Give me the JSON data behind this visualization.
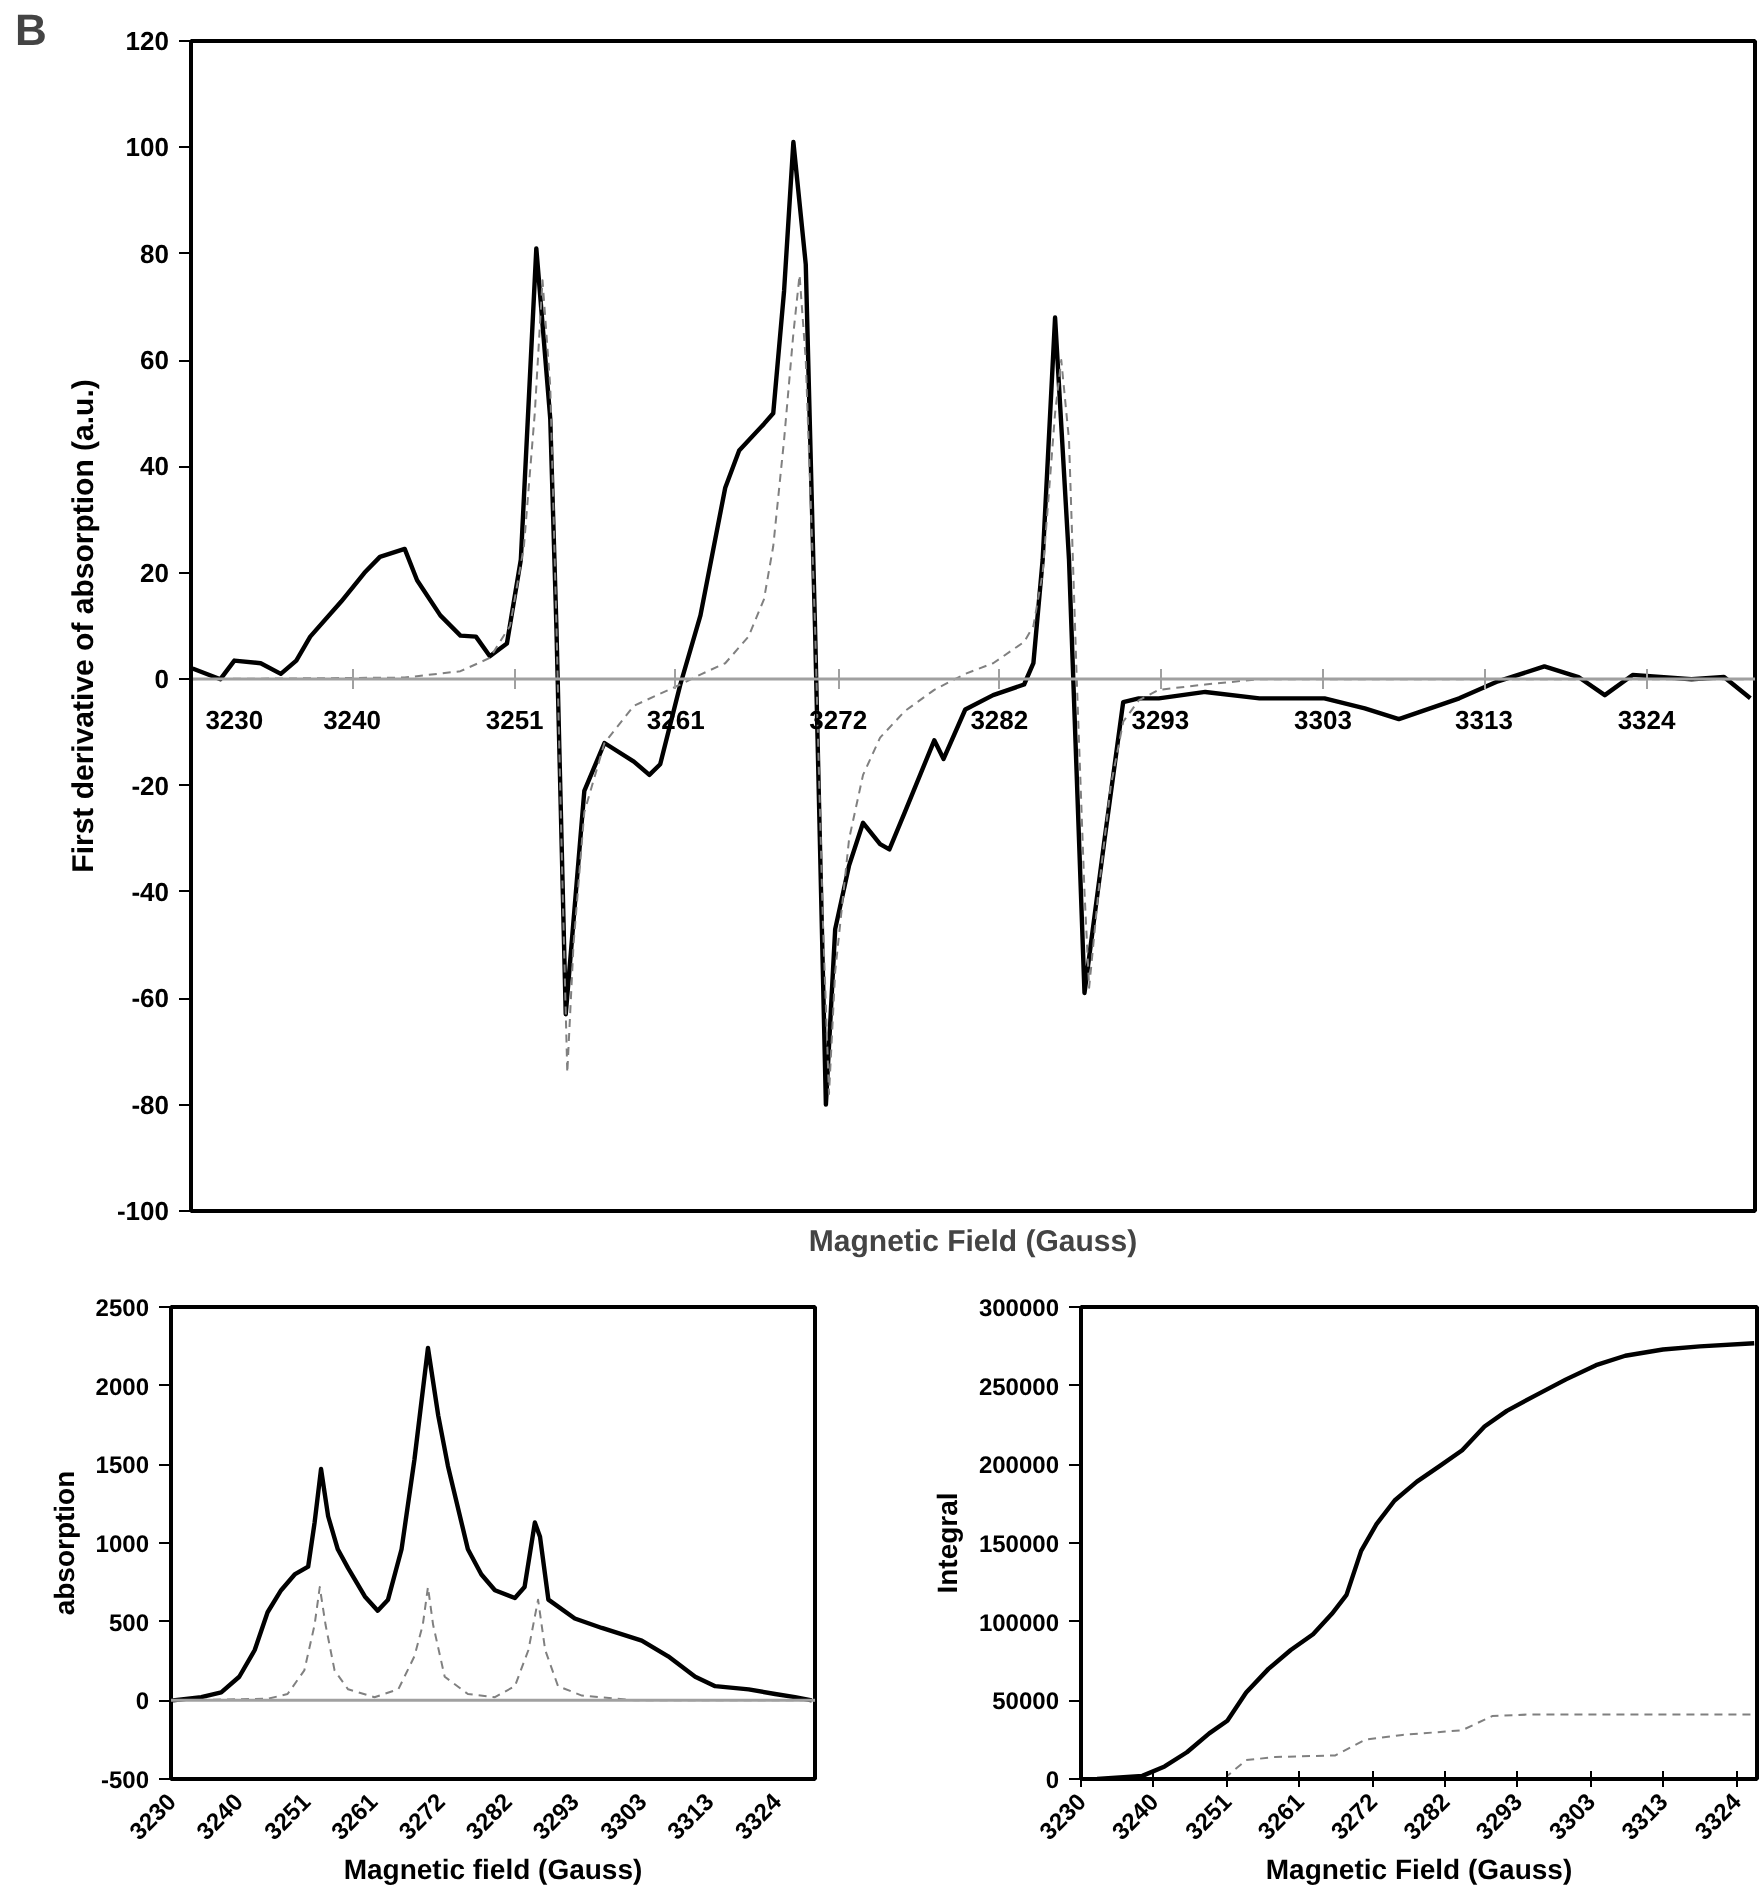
{
  "chart_data": [
    {
      "type": "line",
      "annotations": [
        "B"
      ],
      "xlabel": "Magnetic Field (Gauss)",
      "ylabel": "First derivative of absorption (a.u.)",
      "xlim": [
        3230,
        3331
      ],
      "ylim": [
        -100,
        120
      ],
      "xticks": [
        3230,
        {
          "value": 3240.4,
          "label": "3240"
        },
        {
          "value": 3250.9,
          "label": "3251"
        },
        {
          "value": 3261.3,
          "label": "3261"
        },
        {
          "value": 3271.8,
          "label": "3272"
        },
        {
          "value": 3282.2,
          "label": "3282"
        },
        {
          "value": 3292.6,
          "label": "3293"
        },
        {
          "value": 3303.1,
          "label": "3303"
        },
        {
          "value": 3313.5,
          "label": "3313"
        },
        {
          "value": 3324.0,
          "label": "3324"
        }
      ],
      "yticks": [
        -100,
        -80,
        -60,
        -40,
        -20,
        0,
        20,
        40,
        60,
        80,
        100,
        120
      ],
      "grid": false,
      "series": [
        {
          "color": "#000000",
          "line_style": "solid",
          "x": [
            3230.1,
            3231.9,
            3232.8,
            3234.5,
            3235.8,
            3236.8,
            3237.7,
            3239.7,
            3241.2,
            3242.2,
            3243.8,
            3244.6,
            3246.1,
            3247.4,
            3248.4,
            3249.3,
            3250.4,
            3251.3,
            3252.3,
            3253.2,
            3253.6,
            3254.2,
            3255.4,
            3256.7,
            3258.6,
            3259.6,
            3260.3,
            3261.6,
            3262.9,
            3264.5,
            3265.4,
            3267.0,
            3267.6,
            3268.3,
            3268.9,
            3269.7,
            3270.3,
            3271.0,
            3271.6,
            3272.5,
            3273.4,
            3274.5,
            3275.1,
            3276.1,
            3278.0,
            3278.6,
            3280.0,
            3281.8,
            3283.8,
            3284.4,
            3285.0,
            3285.8,
            3286.7,
            3287.7,
            3289.0,
            3290.2,
            3291.2,
            3292.5,
            3295.5,
            3299.0,
            3303.2,
            3305.8,
            3308.0,
            3311.9,
            3314.4,
            3317.4,
            3319.6,
            3321.3,
            3323.1,
            3326.9,
            3329.0,
            3330.7
          ],
          "values": [
            2,
            0,
            3.5,
            3,
            1,
            3.5,
            8,
            14.6,
            20,
            23,
            24.5,
            18.6,
            12,
            8.2,
            8,
            4.3,
            6.7,
            22.5,
            81,
            49,
            9.5,
            -63,
            -21,
            -12,
            -15.5,
            -18,
            -16,
            -1,
            12,
            36,
            43,
            48,
            50,
            73,
            101,
            78,
            9.5,
            -80,
            -47,
            -35,
            -27,
            -31,
            -32,
            -25,
            -11.5,
            -15,
            -5.7,
            -3,
            -1,
            3,
            22.5,
            68,
            22.5,
            -59,
            -30,
            -4.3,
            -3.6,
            -3.6,
            -2.4,
            -3.6,
            -3.6,
            -5.5,
            -7.5,
            -3.6,
            -0.4,
            2.4,
            0.4,
            -3,
            0.8,
            0,
            0.4,
            -3.6
          ]
        },
        {
          "color": "#808080",
          "line_style": "dashed",
          "x": [
            3230.0,
            3243.8,
            3247.4,
            3249.3,
            3250.6,
            3251.5,
            3252.2,
            3252.7,
            3253.2,
            3253.6,
            3254.0,
            3254.3,
            3254.7,
            3255.4,
            3256.7,
            3258.6,
            3261.6,
            3263.0,
            3264.5,
            3266.0,
            3267.0,
            3267.6,
            3268.3,
            3268.9,
            3269.3,
            3269.7,
            3270.3,
            3270.8,
            3271.2,
            3271.6,
            3272.5,
            3273.4,
            3274.5,
            3276.1,
            3278.0,
            3280.0,
            3281.8,
            3283.8,
            3284.4,
            3285.0,
            3285.8,
            3286.2,
            3286.7,
            3287.2,
            3287.7,
            3288.0,
            3288.6,
            3289.4,
            3290.2,
            3291.2,
            3292.5,
            3295.5,
            3299.0,
            3330.7
          ],
          "values": [
            0,
            0.3,
            1.5,
            4,
            10,
            25,
            50,
            75,
            55,
            10,
            -40,
            -74,
            -50,
            -25,
            -12,
            -5,
            -1,
            1,
            3,
            8,
            15,
            25,
            45,
            65,
            76,
            60,
            10,
            -45,
            -78,
            -55,
            -30,
            -18,
            -11,
            -6,
            -2,
            1,
            3,
            7,
            10,
            20,
            50,
            60,
            45,
            0,
            -40,
            -58,
            -40,
            -20,
            -8,
            -4,
            -2,
            -1,
            0,
            0
          ]
        }
      ]
    },
    {
      "type": "line",
      "xlabel": "Magnetic field (Gauss)",
      "ylabel": "absorption",
      "xlim": [
        3230,
        3330
      ],
      "ylim": [
        -500,
        2500
      ],
      "xticks": [
        3230,
        {
          "value": 3240.4,
          "label": "3240"
        },
        {
          "value": 3250.9,
          "label": "3251"
        },
        {
          "value": 3261.3,
          "label": "3261"
        },
        {
          "value": 3271.8,
          "label": "3272"
        },
        {
          "value": 3282.2,
          "label": "3282"
        },
        {
          "value": 3292.6,
          "label": "3293"
        },
        {
          "value": 3303.1,
          "label": "3303"
        },
        {
          "value": 3313.5,
          "label": "3313"
        },
        {
          "value": 3324.0,
          "label": "3324"
        }
      ],
      "yticks": [
        -500,
        0,
        500,
        1000,
        1500,
        2000,
        2500
      ],
      "ref_lines": [
        {
          "axis": "y",
          "value": 0,
          "color": "#a0a0a0"
        }
      ],
      "grid": false,
      "series": [
        {
          "color": "#000000",
          "line_style": "solid",
          "x": [
            3230.3,
            3234.7,
            3237.8,
            3240.6,
            3243.0,
            3245.0,
            3247.1,
            3249.2,
            3251.3,
            3252.3,
            3253.3,
            3254.4,
            3255.9,
            3257.5,
            3260.1,
            3262.1,
            3263.7,
            3265.8,
            3267.8,
            3269.9,
            3271.5,
            3273.0,
            3276.1,
            3278.2,
            3280.3,
            3283.4,
            3284.9,
            3286.5,
            3287.3,
            3288.6,
            3292.7,
            3296.9,
            3303.1,
            3307.2,
            3311.4,
            3314.5,
            3319.7,
            3323.8,
            3326.9,
            3329.5
          ],
          "values": [
            0,
            20,
            50,
            150,
            320,
            560,
            700,
            800,
            850,
            1130,
            1470,
            1170,
            960,
            840,
            660,
            570,
            640,
            960,
            1530,
            2240,
            1810,
            1490,
            960,
            800,
            700,
            650,
            720,
            1130,
            1040,
            640,
            520,
            460,
            380,
            280,
            150,
            90,
            70,
            40,
            20,
            0
          ]
        },
        {
          "color": "#808080",
          "line_style": "dashed",
          "x": [
            3230.0,
            3245.0,
            3248.1,
            3250.7,
            3252.3,
            3253.1,
            3254.0,
            3255.4,
            3257.5,
            3261.6,
            3265.3,
            3267.8,
            3269.1,
            3269.9,
            3270.7,
            3272.5,
            3276.1,
            3280.3,
            3283.4,
            3285.5,
            3287.0,
            3288.1,
            3290.1,
            3293.8,
            3302.0,
            3330.0
          ],
          "values": [
            0,
            10,
            40,
            190,
            480,
            720,
            480,
            190,
            70,
            20,
            70,
            280,
            480,
            720,
            480,
            150,
            40,
            20,
            90,
            320,
            640,
            320,
            90,
            30,
            0,
            0
          ]
        }
      ]
    },
    {
      "type": "line",
      "xlabel": "Magnetic Field (Gauss)",
      "ylabel": "Integral",
      "xlim": [
        3230,
        3327
      ],
      "ylim": [
        0,
        300000
      ],
      "xticks": [
        3230,
        {
          "value": 3240.4,
          "label": "3240"
        },
        {
          "value": 3250.9,
          "label": "3251"
        },
        {
          "value": 3261.3,
          "label": "3261"
        },
        {
          "value": 3271.8,
          "label": "3272"
        },
        {
          "value": 3282.2,
          "label": "3282"
        },
        {
          "value": 3292.6,
          "label": "3293"
        },
        {
          "value": 3303.1,
          "label": "3303"
        },
        {
          "value": 3313.5,
          "label": "3313"
        },
        {
          "value": 3324.0,
          "label": "3324"
        }
      ],
      "yticks": [
        0,
        50000,
        100000,
        150000,
        200000,
        250000,
        300000
      ],
      "grid": false,
      "series": [
        {
          "color": "#000000",
          "line_style": "solid",
          "x": [
            3232.3,
            3238.8,
            3242.0,
            3245.2,
            3248.4,
            3251.0,
            3253.7,
            3256.9,
            3260.1,
            3263.3,
            3266.0,
            3268.1,
            3270.2,
            3272.4,
            3275.0,
            3278.2,
            3281.5,
            3284.7,
            3287.9,
            3291.1,
            3295.3,
            3299.6,
            3303.9,
            3308.1,
            3313.5,
            3318.8,
            3326.6
          ],
          "values": [
            0,
            2000,
            8000,
            17000,
            29000,
            37000,
            55000,
            70000,
            82000,
            92000,
            105000,
            117000,
            145000,
            162000,
            177000,
            189000,
            199000,
            209000,
            224000,
            234000,
            244000,
            254000,
            263000,
            269000,
            273000,
            275000,
            277000
          ]
        },
        {
          "color": "#808080",
          "line_style": "dashed",
          "x": [
            3250.8,
            3251.0,
            3253.7,
            3257.9,
            3266.5,
            3270.8,
            3276.1,
            3284.7,
            3289.0,
            3294.3,
            3326.6
          ],
          "values": [
            0,
            2000,
            12000,
            14000,
            15000,
            25000,
            28000,
            31000,
            40000,
            41000,
            41000
          ]
        }
      ]
    }
  ]
}
